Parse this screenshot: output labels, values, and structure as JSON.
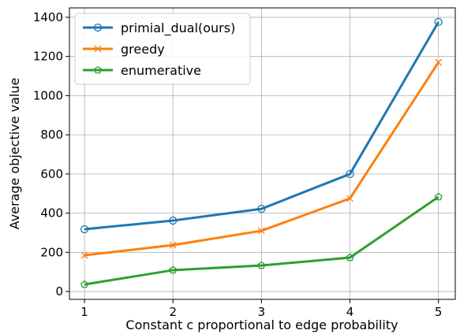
{
  "chart_data": {
    "type": "line",
    "xlabel": "Constant c proportional to edge probability",
    "ylabel": "Average objective value",
    "x": [
      1,
      2,
      3,
      4,
      5
    ],
    "series": [
      {
        "name": "primial_dual(ours)",
        "color": "#1f77b4",
        "marker": "circle",
        "values": [
          318,
          362,
          422,
          600,
          1376
        ]
      },
      {
        "name": "greedy",
        "color": "#ff7f0e",
        "marker": "x",
        "values": [
          185,
          237,
          310,
          475,
          1170
        ]
      },
      {
        "name": "enumerative",
        "color": "#2ca02c",
        "marker": "pentagon",
        "values": [
          36,
          109,
          133,
          173,
          483
        ]
      }
    ],
    "xlim": [
      0.83,
      5.19
    ],
    "xticks": [
      1,
      2,
      3,
      4,
      5
    ],
    "ylim": [
      -40,
      1448
    ],
    "yticks": [
      0,
      200,
      400,
      600,
      800,
      1000,
      1200,
      1400
    ],
    "grid": true,
    "legend": "upper left"
  }
}
